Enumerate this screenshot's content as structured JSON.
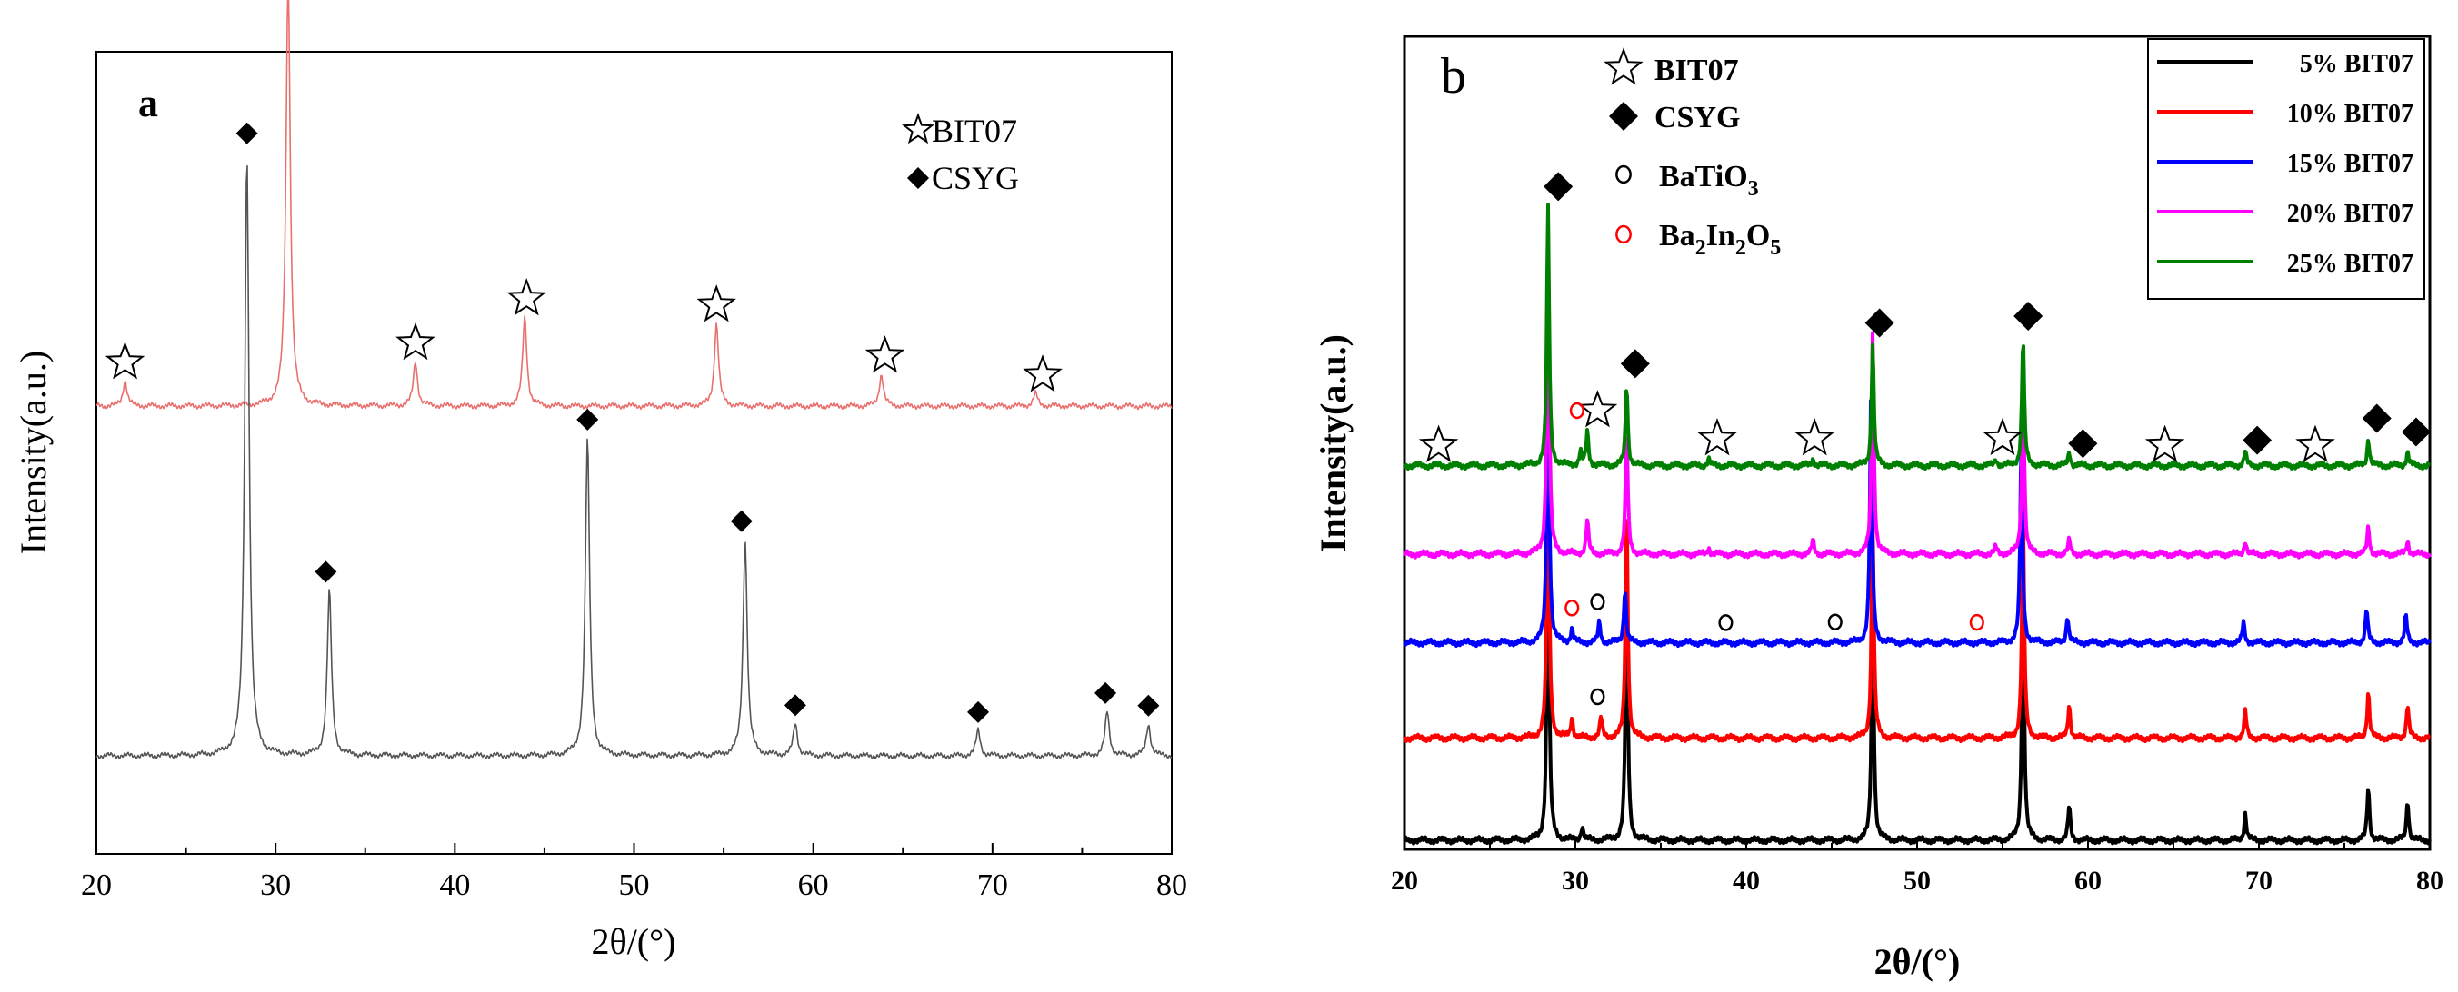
{
  "chart_data": [
    {
      "panel_label": "a",
      "type": "line",
      "xlabel": "2θ/(°)",
      "ylabel": "Intensity(a.u.)",
      "xlim": [
        20,
        80
      ],
      "xticks": [
        "20",
        "30",
        "40",
        "50",
        "60",
        "70",
        "80"
      ],
      "legend": [
        {
          "marker": "star",
          "label": "BIT07"
        },
        {
          "marker": "diamond",
          "label": "CSYG"
        }
      ],
      "legend_placement": "top-right",
      "series": [
        {
          "color": "#e8706e",
          "baseline": 0.55,
          "peaks": [
            [
              21.6,
              0.04
            ],
            [
              30.7,
              0.68
            ],
            [
              37.8,
              0.07
            ],
            [
              43.9,
              0.14
            ],
            [
              54.6,
              0.13
            ],
            [
              63.8,
              0.05
            ],
            [
              72.4,
              0.02
            ]
          ],
          "markers": [
            {
              "marker": "star",
              "x": [
                21.6,
                30.3,
                37.8,
                44.0,
                54.6,
                64.0,
                72.8
              ]
            }
          ]
        },
        {
          "color": "#555555",
          "baseline": 0.0,
          "peaks": [
            [
              28.4,
              0.95
            ],
            [
              33.0,
              0.26
            ],
            [
              47.4,
              0.5
            ],
            [
              56.2,
              0.34
            ],
            [
              59.0,
              0.05
            ],
            [
              69.2,
              0.04
            ],
            [
              76.4,
              0.07
            ],
            [
              78.7,
              0.05
            ]
          ],
          "markers": [
            {
              "marker": "diamond",
              "x": [
                28.4,
                32.8,
                47.4,
                56.0,
                59.0,
                69.2,
                76.3,
                78.7
              ]
            }
          ]
        }
      ]
    },
    {
      "panel_label": "b",
      "type": "line",
      "xlabel": "2θ/(°)",
      "ylabel": "Intensity(a.u.)",
      "xlim": [
        20,
        80
      ],
      "xticks": [
        "20",
        "30",
        "40",
        "50",
        "60",
        "70",
        "80"
      ],
      "phase_legend": [
        {
          "marker": "star",
          "label": "BIT07",
          "color": "#000000"
        },
        {
          "marker": "diamond",
          "label": "CSYG",
          "color": "#000000"
        },
        {
          "marker": "circle",
          "label": "BaTiO",
          "sub": "3",
          "color": "#000000"
        },
        {
          "marker": "circle",
          "label_parts": [
            "Ba",
            "2",
            "In",
            "2",
            "O",
            "5"
          ],
          "color": "#ff0000"
        }
      ],
      "legend": [
        {
          "name": "5% BIT07",
          "color": "#000000"
        },
        {
          "name": "10% BIT07",
          "color": "#ff0000"
        },
        {
          "name": "15% BIT07",
          "color": "#0000ff"
        },
        {
          "name": "20% BIT07",
          "color": "#ff00ff"
        },
        {
          "name": "25% BIT07",
          "color": "#008000"
        }
      ],
      "legend_placement": "top-right",
      "series": [
        {
          "name": "5% BIT07",
          "color": "#000000",
          "baseline": 0.0,
          "peaks": [
            [
              28.4,
              0.48
            ],
            [
              30.4,
              0.02
            ],
            [
              33.0,
              0.4
            ],
            [
              47.4,
              0.35
            ],
            [
              56.2,
              0.38
            ],
            [
              58.9,
              0.05
            ],
            [
              69.2,
              0.04
            ],
            [
              76.4,
              0.08
            ],
            [
              78.7,
              0.06
            ]
          ]
        },
        {
          "name": "10% BIT07",
          "color": "#ff0000",
          "baseline": 0.15,
          "peaks": [
            [
              28.4,
              0.46
            ],
            [
              29.8,
              0.03
            ],
            [
              31.5,
              0.03
            ],
            [
              33.0,
              0.34
            ],
            [
              47.4,
              0.33
            ],
            [
              56.2,
              0.33
            ],
            [
              58.9,
              0.05
            ],
            [
              69.2,
              0.04
            ],
            [
              76.4,
              0.07
            ],
            [
              78.7,
              0.05
            ]
          ],
          "markers": [
            {
              "marker": "circle",
              "color": "#000000",
              "x": [
                31.3
              ]
            }
          ]
        },
        {
          "name": "15% BIT07",
          "color": "#0000ff",
          "baseline": 0.29,
          "peaks": [
            [
              28.4,
              0.46
            ],
            [
              29.8,
              0.02
            ],
            [
              31.4,
              0.03
            ],
            [
              32.9,
              0.08
            ],
            [
              47.3,
              0.36
            ],
            [
              56.1,
              0.3
            ],
            [
              58.8,
              0.04
            ],
            [
              69.1,
              0.03
            ],
            [
              76.3,
              0.05
            ],
            [
              78.6,
              0.04
            ]
          ],
          "markers": [
            {
              "marker": "circle",
              "color": "#ff0000",
              "x": [
                29.8,
                53.5
              ]
            },
            {
              "marker": "circle",
              "color": "#000000",
              "x": [
                31.3,
                38.8,
                45.2
              ]
            }
          ]
        },
        {
          "name": "20% BIT07",
          "color": "#ff00ff",
          "baseline": 0.42,
          "peaks": [
            [
              28.4,
              0.48
            ],
            [
              30.7,
              0.05
            ],
            [
              33.0,
              0.18
            ],
            [
              37.8,
              0.01
            ],
            [
              43.9,
              0.02
            ],
            [
              47.4,
              0.33
            ],
            [
              54.6,
              0.01
            ],
            [
              56.2,
              0.27
            ],
            [
              58.9,
              0.02
            ],
            [
              69.2,
              0.02
            ],
            [
              76.4,
              0.04
            ],
            [
              78.7,
              0.02
            ]
          ]
        },
        {
          "name": "25% BIT07",
          "color": "#008000",
          "baseline": 0.55,
          "peaks": [
            [
              28.4,
              0.38
            ],
            [
              30.3,
              0.02
            ],
            [
              30.7,
              0.05
            ],
            [
              33.0,
              0.12
            ],
            [
              37.8,
              0.01
            ],
            [
              43.9,
              0.01
            ],
            [
              47.4,
              0.18
            ],
            [
              54.6,
              0.01
            ],
            [
              56.2,
              0.19
            ],
            [
              58.9,
              0.02
            ],
            [
              69.2,
              0.02
            ],
            [
              76.4,
              0.04
            ],
            [
              78.7,
              0.02
            ]
          ],
          "markers": [
            {
              "marker": "star",
              "color": "#000000",
              "x": [
                22.0,
                31.3,
                38.3,
                44.0,
                55.0,
                64.5,
                73.3
              ]
            },
            {
              "marker": "diamond",
              "color": "#000000",
              "x": [
                29.0,
                33.5,
                47.8,
                56.5,
                59.7,
                69.9,
                76.9,
                79.2
              ]
            },
            {
              "marker": "circle",
              "color": "#ff0000",
              "x": [
                30.1
              ]
            }
          ]
        }
      ]
    }
  ]
}
